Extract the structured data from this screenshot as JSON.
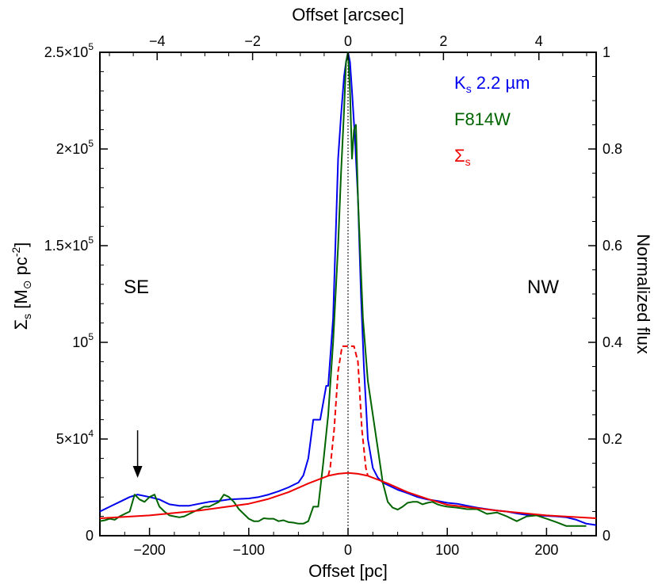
{
  "chart_data": {
    "type": "line",
    "x_axis_bottom": {
      "label": "Offset [pc]",
      "range": [
        -250,
        250
      ],
      "ticks": [
        -200,
        -100,
        0,
        100,
        200
      ],
      "tick_labels": [
        "−200",
        "−100",
        "0",
        "100",
        "200"
      ]
    },
    "x_axis_top": {
      "label": "Offset [arcsec]",
      "range": [
        -5.2,
        5.2
      ],
      "ticks": [
        -4,
        -2,
        0,
        2,
        4
      ],
      "tick_labels": [
        "−4",
        "−2",
        "0",
        "2",
        "4"
      ]
    },
    "y_axis_left": {
      "label_main": "Σ",
      "label_sub": "s",
      "label_rest": " [M",
      "label_sun": "⊙",
      "label_unit": " pc",
      "label_exp": "-2",
      "label_close": "]",
      "range": [
        0,
        250000
      ],
      "ticks": [
        0,
        50000,
        100000,
        150000,
        200000,
        250000
      ],
      "tick_labels": [
        {
          "mant": "0",
          "exp": ""
        },
        {
          "mant": "5×10",
          "exp": "4"
        },
        {
          "mant": "10",
          "exp": "5"
        },
        {
          "mant": "1.5×10",
          "exp": "5"
        },
        {
          "mant": "2×10",
          "exp": "5"
        },
        {
          "mant": "2.5×10",
          "exp": "5"
        }
      ]
    },
    "y_axis_right": {
      "label": "Normalized flux",
      "range": [
        0,
        1
      ],
      "ticks": [
        0,
        0.2,
        0.4,
        0.6,
        0.8,
        1
      ],
      "tick_labels": [
        "0",
        "0.2",
        "0.4",
        "0.6",
        "0.8",
        "1"
      ]
    },
    "annotations": {
      "left": "SE",
      "right": "NW",
      "arrow_x": -212
    },
    "legend_placement": "top-right",
    "legend": [
      {
        "text": "K",
        "sub": "s",
        "rest": " 2.2 µm",
        "color": "#0000ee"
      },
      {
        "text": "F814W",
        "sub": "",
        "rest": "",
        "color": "#006400"
      },
      {
        "text": "Σ",
        "sub": "s",
        "rest": "",
        "color": "#ee0000"
      }
    ],
    "series": [
      {
        "name": "Ks 2.2 µm",
        "axis": "right",
        "color": "#0000ee",
        "x": [
          -250,
          -240,
          -230,
          -220,
          -212,
          -200,
          -190,
          -180,
          -170,
          -160,
          -150,
          -140,
          -130,
          -120,
          -110,
          -100,
          -90,
          -80,
          -70,
          -60,
          -50,
          -45,
          -40,
          -35,
          -32,
          -28,
          -22,
          -20,
          -15,
          -10,
          -7,
          -4,
          -2,
          0,
          2,
          4,
          7,
          10,
          13,
          16,
          20,
          25,
          30,
          35,
          40,
          45,
          50,
          60,
          70,
          80,
          90,
          100,
          110,
          120,
          130,
          140,
          150,
          160,
          170,
          180,
          190,
          200,
          210,
          220,
          230,
          240,
          250
        ],
        "y": [
          0.05,
          0.06,
          0.07,
          0.08,
          0.085,
          0.08,
          0.075,
          0.065,
          0.062,
          0.062,
          0.066,
          0.07,
          0.072,
          0.075,
          0.076,
          0.077,
          0.08,
          0.085,
          0.092,
          0.1,
          0.11,
          0.125,
          0.16,
          0.24,
          0.24,
          0.24,
          0.31,
          0.31,
          0.45,
          0.78,
          0.87,
          0.95,
          0.98,
          1.0,
          0.98,
          0.92,
          0.82,
          0.7,
          0.5,
          0.35,
          0.2,
          0.14,
          0.12,
          0.11,
          0.105,
          0.1,
          0.095,
          0.088,
          0.08,
          0.075,
          0.072,
          0.068,
          0.066,
          0.062,
          0.058,
          0.055,
          0.052,
          0.05,
          0.046,
          0.043,
          0.042,
          0.041,
          0.04,
          0.038,
          0.033,
          0.025,
          0.022
        ]
      },
      {
        "name": "F814W",
        "axis": "right",
        "color": "#006400",
        "x": [
          -250,
          -245,
          -240,
          -235,
          -230,
          -225,
          -220,
          -215,
          -210,
          -205,
          -200,
          -195,
          -190,
          -185,
          -180,
          -175,
          -170,
          -165,
          -160,
          -155,
          -150,
          -145,
          -140,
          -135,
          -130,
          -125,
          -120,
          -115,
          -110,
          -105,
          -100,
          -95,
          -90,
          -85,
          -80,
          -75,
          -70,
          -65,
          -60,
          -55,
          -50,
          -45,
          -40,
          -35,
          -30,
          -25,
          -20,
          -15,
          -10,
          -7,
          -4,
          -2,
          0,
          2,
          4,
          6,
          8,
          10,
          12,
          15,
          20,
          25,
          30,
          35,
          40,
          45,
          50,
          55,
          60,
          65,
          70,
          75,
          80,
          85,
          90,
          95,
          100,
          110,
          120,
          130,
          140,
          150,
          160,
          170,
          180,
          190,
          200,
          210,
          220,
          230,
          240
        ],
        "y": [
          0.03,
          0.032,
          0.035,
          0.033,
          0.04,
          0.045,
          0.05,
          0.085,
          0.075,
          0.07,
          0.08,
          0.085,
          0.06,
          0.05,
          0.042,
          0.04,
          0.038,
          0.04,
          0.045,
          0.05,
          0.055,
          0.06,
          0.06,
          0.065,
          0.07,
          0.085,
          0.08,
          0.07,
          0.055,
          0.045,
          0.035,
          0.03,
          0.03,
          0.036,
          0.035,
          0.035,
          0.03,
          0.032,
          0.028,
          0.027,
          0.025,
          0.025,
          0.03,
          0.06,
          0.06,
          0.15,
          0.25,
          0.4,
          0.6,
          0.75,
          0.88,
          0.98,
          1.0,
          0.92,
          0.78,
          0.84,
          0.85,
          0.7,
          0.6,
          0.45,
          0.32,
          0.25,
          0.18,
          0.11,
          0.07,
          0.058,
          0.054,
          0.06,
          0.068,
          0.07,
          0.07,
          0.065,
          0.068,
          0.07,
          0.065,
          0.062,
          0.06,
          0.058,
          0.055,
          0.055,
          0.045,
          0.048,
          0.04,
          0.03,
          0.04,
          0.042,
          0.035,
          0.028,
          0.02,
          0.02,
          0.02
        ]
      },
      {
        "name": "Σs",
        "axis": "left",
        "color": "#ee0000",
        "x": [
          -250,
          -200,
          -150,
          -100,
          -80,
          -60,
          -40,
          -20,
          -10,
          0,
          10,
          20,
          40,
          60,
          80,
          100,
          150,
          200,
          250
        ],
        "y": [
          9000,
          10500,
          13000,
          16500,
          19000,
          22500,
          27000,
          31000,
          32000,
          32500,
          32000,
          31000,
          27000,
          22500,
          19000,
          16000,
          13000,
          10500,
          9000
        ]
      },
      {
        "name": "Σs dashed",
        "axis": "left",
        "color": "#ee0000",
        "dashed": true,
        "x": [
          -20,
          -18,
          -14,
          -10,
          -6,
          -4,
          0,
          4,
          6,
          10,
          14,
          18,
          20
        ],
        "y": [
          31000,
          35000,
          55000,
          85000,
          98000,
          98000,
          98000,
          98000,
          98000,
          90000,
          55000,
          35000,
          31000
        ]
      }
    ]
  }
}
